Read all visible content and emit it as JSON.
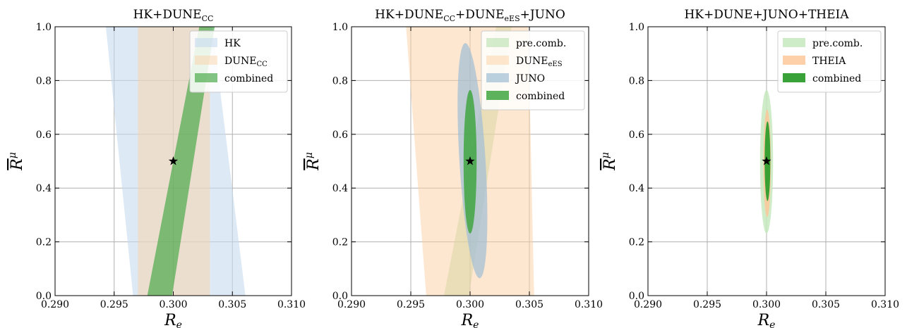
{
  "chart_data": [
    {
      "type": "contour",
      "title": "HK+DUNE",
      "title_sub": "CC",
      "title_tail": "",
      "xlabel": "R",
      "xlabel_sub": "e",
      "ylabel": "R",
      "ylabel_sup": "μ",
      "xlim": [
        0.29,
        0.31
      ],
      "ylim": [
        0.0,
        1.0
      ],
      "xticks": [
        "0.290",
        "0.295",
        "0.300",
        "0.305",
        "0.310"
      ],
      "yticks": [
        "0.0",
        "0.2",
        "0.4",
        "0.6",
        "0.8",
        "1.0"
      ],
      "grid": true,
      "legend_position": "top-right",
      "true_point": {
        "x": 0.3,
        "y": 0.5
      },
      "regions": [
        {
          "name": "HK",
          "name_sub": "",
          "color": "#c6dbef",
          "opacity": 0.6,
          "shape": "band",
          "polygon": [
            [
              0.2943,
              1.0
            ],
            [
              0.3033,
              1.0
            ],
            [
              0.3061,
              0.0
            ],
            [
              0.2966,
              0.0
            ]
          ]
        },
        {
          "name": "DUNE",
          "name_sub": "CC",
          "color": "#fdd0a2",
          "opacity": 0.45,
          "shape": "band",
          "polygon": [
            [
              0.297,
              1.0
            ],
            [
              0.3031,
              1.0
            ],
            [
              0.3031,
              0.0
            ],
            [
              0.297,
              0.0
            ]
          ]
        },
        {
          "name": "combined",
          "name_sub": "",
          "color": "#41a441",
          "opacity": 0.65,
          "shape": "band",
          "polygon": [
            [
              0.3022,
              1.0
            ],
            [
              0.3035,
              1.0
            ],
            [
              0.2999,
              0.0
            ],
            [
              0.2978,
              0.0
            ]
          ]
        }
      ]
    },
    {
      "type": "contour",
      "title": "HK+DUNE",
      "title_sub": "CC",
      "title_tail": "+DUNE",
      "title_tail_sub": "eES",
      "title_end": "+JUNO",
      "xlabel": "R",
      "xlabel_sub": "e",
      "ylabel": "R",
      "ylabel_sup": "μ",
      "xlim": [
        0.29,
        0.31
      ],
      "ylim": [
        0.0,
        1.0
      ],
      "xticks": [
        "0.290",
        "0.295",
        "0.300",
        "0.305",
        "0.310"
      ],
      "yticks": [
        "0.0",
        "0.2",
        "0.4",
        "0.6",
        "0.8",
        "1.0"
      ],
      "grid": true,
      "legend_position": "top-right",
      "true_point": {
        "x": 0.3,
        "y": 0.5
      },
      "regions": [
        {
          "name": "pre.comb.",
          "name_sub": "",
          "color": "#b2dfa8",
          "opacity": 0.55,
          "shape": "band",
          "polygon": [
            [
              0.3022,
              1.0
            ],
            [
              0.3035,
              1.0
            ],
            [
              0.2999,
              0.0
            ],
            [
              0.2978,
              0.0
            ]
          ]
        },
        {
          "name": "DUNE",
          "name_sub": "eES",
          "color": "#fdd0a2",
          "opacity": 0.5,
          "shape": "band",
          "polygon": [
            [
              0.2946,
              1.0
            ],
            [
              0.3049,
              1.0
            ],
            [
              0.3054,
              0.0
            ],
            [
              0.2963,
              0.0
            ]
          ]
        },
        {
          "name": "JUNO",
          "name_sub": "",
          "color": "#9fbdd6",
          "opacity": 0.7,
          "shape": "ellipse",
          "cx": 0.3002,
          "cy": 0.502,
          "rx": 0.0011,
          "ry": 0.438,
          "tilt": 3.5
        },
        {
          "name": "combined",
          "name_sub": "",
          "color": "#41a441",
          "opacity": 0.85,
          "shape": "ellipse",
          "cx": 0.3,
          "cy": 0.498,
          "rx": 0.00055,
          "ry": 0.267,
          "tilt": 0
        }
      ]
    },
    {
      "type": "contour",
      "title": "HK+DUNE+JUNO+THEIA",
      "title_sub": "",
      "title_tail": "",
      "xlabel": "R",
      "xlabel_sub": "e",
      "ylabel": "R",
      "ylabel_sup": "μ",
      "xlim": [
        0.29,
        0.31
      ],
      "ylim": [
        0.0,
        1.0
      ],
      "xticks": [
        "0.290",
        "0.295",
        "0.300",
        "0.305",
        "0.310"
      ],
      "yticks": [
        "0.0",
        "0.2",
        "0.4",
        "0.6",
        "0.8",
        "1.0"
      ],
      "grid": true,
      "legend_position": "top-right",
      "true_point": {
        "x": 0.3,
        "y": 0.5
      },
      "regions": [
        {
          "name": "pre.comb.",
          "name_sub": "",
          "color": "#c7e9c0",
          "opacity": 0.85,
          "shape": "ellipse",
          "cx": 0.3,
          "cy": 0.498,
          "rx": 0.00055,
          "ry": 0.267,
          "tilt": 0
        },
        {
          "name": "THEIA",
          "name_sub": "",
          "color": "#fdc89a",
          "opacity": 0.85,
          "shape": "ellipse",
          "cx": 0.30005,
          "cy": 0.492,
          "rx": 0.00032,
          "ry": 0.2,
          "tilt": 0
        },
        {
          "name": "combined",
          "name_sub": "",
          "color": "#2e9e2e",
          "opacity": 0.95,
          "shape": "ellipse",
          "cx": 0.30008,
          "cy": 0.5,
          "rx": 0.00024,
          "ry": 0.148,
          "tilt": 0
        }
      ]
    }
  ]
}
